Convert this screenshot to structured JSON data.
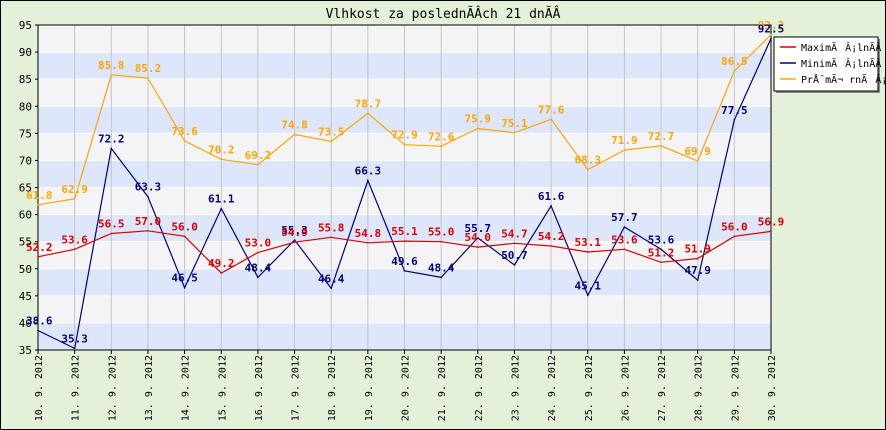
{
  "chart_data": {
    "type": "line",
    "title": "Vlhkost za poslednÃ­Â­ch 21 dnÃ­Â­",
    "xlabel": "",
    "ylabel": "",
    "ylim": [
      35,
      95
    ],
    "yticks": [
      35,
      40,
      45,
      50,
      55,
      60,
      65,
      70,
      75,
      80,
      85,
      90,
      95
    ],
    "x": [
      "10. 9. 2012",
      "11. 9. 2012",
      "12. 9. 2012",
      "13. 9. 2012",
      "14. 9. 2012",
      "15. 9. 2012",
      "16. 9. 2012",
      "17. 9. 2012",
      "18. 9. 2012",
      "19. 9. 2012",
      "20. 9. 2012",
      "21. 9. 2012",
      "22. 9. 2012",
      "23. 9. 2012",
      "24. 9. 2012",
      "25. 9. 2012",
      "26. 9. 2012",
      "27. 9. 2012",
      "28. 9. 2012",
      "29. 9. 2012",
      "30. 9. 2012"
    ],
    "grid": true,
    "legend_position": "top-right",
    "series": [
      {
        "name": "MaximÃÂ¡lnÃ­Â­",
        "color": "#dd0000",
        "values": [
          52.2,
          53.6,
          56.5,
          57.0,
          56.0,
          49.2,
          53.0,
          54.9,
          55.8,
          54.8,
          55.1,
          55.0,
          54.0,
          54.7,
          54.2,
          53.1,
          53.6,
          51.2,
          51.9,
          56.0,
          56.9
        ],
        "labels": [
          "52.2",
          "53.6",
          "56.5",
          "57.0",
          "56.0",
          "49.2",
          "53.0",
          "54.9",
          "55.8",
          "54.8",
          "55.1",
          "55.0",
          "54.0",
          "54.7",
          "54.2",
          "53.1",
          "53.6",
          "51.2",
          "51.9",
          "56.0",
          "56.9"
        ]
      },
      {
        "name": "MinimÃÂ¡lnÃ­Â­",
        "color": "#000080",
        "values": [
          38.6,
          35.3,
          72.2,
          63.3,
          46.5,
          61.1,
          48.4,
          55.3,
          46.4,
          66.3,
          49.6,
          48.4,
          55.7,
          50.7,
          61.6,
          45.1,
          57.7,
          53.6,
          47.9,
          77.5,
          92.5
        ],
        "labels": [
          "38.6",
          "35.3",
          "72.2",
          "63.3",
          "46.5",
          "61.1",
          "48.4",
          "55.3",
          "46.4",
          "66.3",
          "49.6",
          "48.4",
          "55.7",
          "50.7",
          "61.6",
          "45.1",
          "57.7",
          "53.6",
          "47.9",
          "77.5",
          "92.5"
        ]
      },
      {
        "name": "PrÅ¯mÃ¬ rnÃÂ¡",
        "color": "#ffa500",
        "values": [
          61.8,
          62.9,
          85.8,
          85.2,
          73.6,
          70.2,
          69.2,
          74.8,
          73.5,
          78.7,
          72.9,
          72.6,
          75.9,
          75.1,
          77.6,
          68.3,
          71.9,
          72.7,
          69.9,
          86.5,
          93.2
        ],
        "labels": [
          "61.8",
          "62.9",
          "85.8",
          "85.2",
          "73.6",
          "70.2",
          "69.2",
          "74.8",
          "73.5",
          "78.7",
          "72.9",
          "72.6",
          "75.9",
          "75.1",
          "77.6",
          "68.3",
          "71.9",
          "72.7",
          "69.9",
          "86.5",
          "93.2"
        ]
      }
    ]
  }
}
